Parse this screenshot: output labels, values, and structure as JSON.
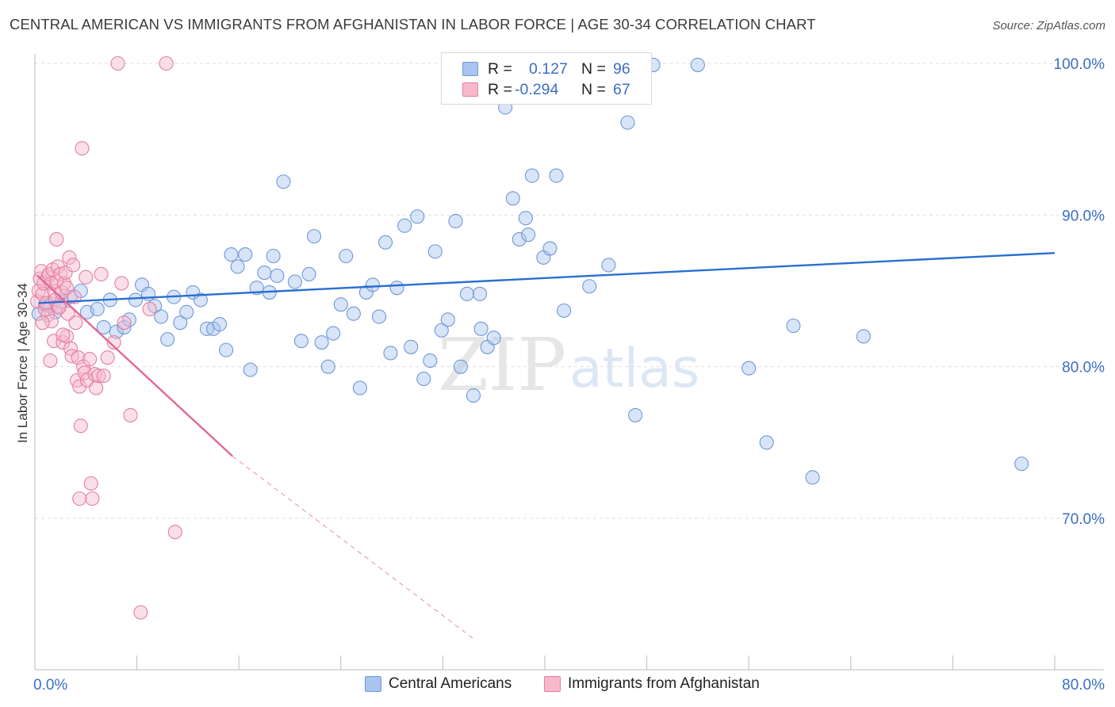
{
  "title": "CENTRAL AMERICAN VS IMMIGRANTS FROM AFGHANISTAN IN LABOR FORCE | AGE 30-34 CORRELATION CHART",
  "source": "Source: ZipAtlas.com",
  "watermark": {
    "zip": "ZIP",
    "atlas": "atlas"
  },
  "legend": {
    "rows": [
      {
        "r_label": "R =",
        "r_value": "0.127",
        "n_label": "N =",
        "n_value": "96",
        "color": "#a9c4ee",
        "edge": "#6f98d8"
      },
      {
        "r_label": "R =",
        "r_value": "-0.294",
        "n_label": "N =",
        "n_value": "67",
        "color": "#f7b8cb",
        "edge": "#e37fa0"
      }
    ]
  },
  "bottom_legend": [
    {
      "label": "Central Americans",
      "color": "#a9c4ee",
      "edge": "#6f98d8"
    },
    {
      "label": "Immigrants from Afghanistan",
      "color": "#f7b8cb",
      "edge": "#e37fa0"
    }
  ],
  "chart_data": {
    "type": "scatter",
    "title": "CENTRAL AMERICAN VS IMMIGRANTS FROM AFGHANISTAN IN LABOR FORCE | AGE 30-34 CORRELATION CHART",
    "xlabel": "",
    "ylabel": "In Labor Force | Age 30-34",
    "xlim": [
      0,
      80
    ],
    "ylim": [
      62,
      101
    ],
    "x_tick_labels": [
      "0.0%",
      "80.0%"
    ],
    "y_ticks": [
      70,
      80,
      90,
      100
    ],
    "y_tick_labels": [
      "70.0%",
      "80.0%",
      "90.0%",
      "100.0%"
    ],
    "grid": true,
    "legend_position": "top-center",
    "series": [
      {
        "name": "Central Americans",
        "color": "#a9c4ee",
        "edge": "#6f98d8",
        "trend": {
          "x": [
            0.3,
            80
          ],
          "y": [
            84.2,
            87.5
          ]
        },
        "points": [
          [
            0.3,
            83.5
          ],
          [
            0.8,
            84.1
          ],
          [
            1.2,
            84.0
          ],
          [
            1.6,
            83.6
          ],
          [
            2.1,
            84.3
          ],
          [
            2.8,
            84.6
          ],
          [
            3.6,
            85.0
          ],
          [
            4.1,
            83.6
          ],
          [
            4.9,
            83.8
          ],
          [
            5.4,
            82.6
          ],
          [
            5.9,
            84.4
          ],
          [
            6.4,
            82.3
          ],
          [
            7.0,
            82.6
          ],
          [
            7.4,
            83.1
          ],
          [
            7.9,
            84.4
          ],
          [
            8.4,
            85.4
          ],
          [
            8.9,
            84.8
          ],
          [
            9.4,
            84.0
          ],
          [
            9.9,
            83.3
          ],
          [
            10.4,
            81.8
          ],
          [
            10.9,
            84.6
          ],
          [
            11.4,
            82.9
          ],
          [
            11.9,
            83.6
          ],
          [
            12.4,
            84.9
          ],
          [
            13.0,
            84.4
          ],
          [
            13.5,
            82.5
          ],
          [
            14.0,
            82.5
          ],
          [
            14.5,
            82.8
          ],
          [
            15.0,
            81.1
          ],
          [
            15.4,
            87.4
          ],
          [
            15.9,
            86.6
          ],
          [
            16.5,
            87.4
          ],
          [
            16.9,
            79.8
          ],
          [
            17.4,
            85.2
          ],
          [
            18.0,
            86.2
          ],
          [
            18.4,
            84.9
          ],
          [
            18.7,
            87.3
          ],
          [
            19.0,
            86.0
          ],
          [
            19.5,
            92.2
          ],
          [
            20.4,
            85.6
          ],
          [
            20.9,
            81.7
          ],
          [
            21.5,
            86.1
          ],
          [
            21.9,
            88.6
          ],
          [
            22.5,
            81.6
          ],
          [
            23.0,
            80.0
          ],
          [
            23.4,
            82.2
          ],
          [
            24.0,
            84.1
          ],
          [
            24.4,
            87.3
          ],
          [
            25.0,
            83.5
          ],
          [
            25.5,
            78.6
          ],
          [
            26.0,
            84.9
          ],
          [
            26.5,
            85.4
          ],
          [
            27.0,
            83.3
          ],
          [
            27.5,
            88.2
          ],
          [
            27.9,
            80.9
          ],
          [
            28.4,
            85.2
          ],
          [
            29.0,
            89.3
          ],
          [
            29.5,
            81.3
          ],
          [
            30.0,
            89.9
          ],
          [
            30.5,
            79.2
          ],
          [
            31.0,
            80.4
          ],
          [
            31.4,
            87.6
          ],
          [
            31.9,
            82.4
          ],
          [
            32.4,
            83.1
          ],
          [
            33.0,
            89.6
          ],
          [
            33.4,
            80.0
          ],
          [
            33.9,
            84.8
          ],
          [
            34.4,
            78.1
          ],
          [
            34.9,
            84.8
          ],
          [
            35.0,
            82.5
          ],
          [
            35.5,
            81.3
          ],
          [
            36.0,
            81.9
          ],
          [
            36.9,
            97.1
          ],
          [
            37.5,
            91.1
          ],
          [
            38.0,
            88.4
          ],
          [
            38.5,
            89.8
          ],
          [
            38.7,
            88.7
          ],
          [
            39.0,
            92.6
          ],
          [
            39.9,
            87.2
          ],
          [
            40.4,
            87.8
          ],
          [
            40.9,
            92.6
          ],
          [
            41.5,
            83.7
          ],
          [
            42.4,
            99.9
          ],
          [
            42.8,
            99.9
          ],
          [
            43.5,
            85.3
          ],
          [
            45.0,
            86.7
          ],
          [
            46.5,
            96.1
          ],
          [
            47.1,
            76.8
          ],
          [
            48.5,
            99.9
          ],
          [
            52.0,
            99.9
          ],
          [
            56.0,
            79.9
          ],
          [
            57.4,
            75.0
          ],
          [
            59.5,
            82.7
          ],
          [
            61.0,
            72.7
          ],
          [
            65.0,
            82.0
          ],
          [
            77.4,
            73.6
          ]
        ]
      },
      {
        "name": "Immigrants from Afghanistan",
        "color": "#f7b8cb",
        "edge": "#e37fa0",
        "trend": {
          "x": [
            0.2,
            15.5
          ],
          "y": [
            86.0,
            74.1
          ]
        },
        "trend_dashed": {
          "x": [
            15.5,
            34.5
          ],
          "y": [
            74.1,
            62.0
          ]
        },
        "points": [
          [
            0.2,
            84.3
          ],
          [
            0.3,
            85.0
          ],
          [
            0.4,
            85.8
          ],
          [
            0.5,
            86.3
          ],
          [
            0.6,
            84.8
          ],
          [
            0.7,
            85.5
          ],
          [
            0.8,
            83.8
          ],
          [
            0.9,
            84.2
          ],
          [
            1.0,
            85.9
          ],
          [
            1.0,
            83.4
          ],
          [
            1.1,
            86.1
          ],
          [
            1.2,
            80.4
          ],
          [
            1.3,
            83.0
          ],
          [
            1.3,
            85.5
          ],
          [
            1.4,
            86.4
          ],
          [
            1.5,
            81.7
          ],
          [
            1.5,
            85.0
          ],
          [
            1.6,
            84.4
          ],
          [
            1.7,
            85.6
          ],
          [
            1.7,
            88.4
          ],
          [
            1.8,
            86.6
          ],
          [
            1.9,
            84.0
          ],
          [
            2.0,
            86.1
          ],
          [
            2.1,
            84.9
          ],
          [
            2.2,
            81.6
          ],
          [
            2.3,
            85.5
          ],
          [
            2.4,
            86.2
          ],
          [
            2.5,
            82.0
          ],
          [
            2.5,
            85.2
          ],
          [
            2.6,
            83.5
          ],
          [
            2.7,
            87.2
          ],
          [
            2.8,
            81.2
          ],
          [
            2.9,
            80.7
          ],
          [
            3.0,
            86.7
          ],
          [
            3.1,
            84.6
          ],
          [
            3.2,
            82.9
          ],
          [
            3.3,
            79.1
          ],
          [
            3.4,
            80.6
          ],
          [
            3.5,
            78.7
          ],
          [
            3.6,
            76.1
          ],
          [
            3.7,
            94.4
          ],
          [
            3.8,
            80.0
          ],
          [
            3.9,
            79.6
          ],
          [
            4.0,
            85.9
          ],
          [
            4.1,
            79.1
          ],
          [
            4.3,
            80.5
          ],
          [
            4.4,
            72.3
          ],
          [
            4.5,
            71.3
          ],
          [
            4.7,
            79.5
          ],
          [
            4.8,
            78.6
          ],
          [
            5.0,
            79.4
          ],
          [
            5.2,
            86.1
          ],
          [
            5.4,
            79.4
          ],
          [
            5.7,
            80.6
          ],
          [
            6.2,
            81.6
          ],
          [
            6.5,
            100.0
          ],
          [
            6.8,
            85.5
          ],
          [
            7.0,
            82.9
          ],
          [
            7.5,
            76.8
          ],
          [
            8.3,
            63.8
          ],
          [
            9.0,
            83.8
          ],
          [
            10.3,
            100.0
          ],
          [
            11.0,
            69.1
          ],
          [
            3.5,
            71.3
          ],
          [
            2.2,
            82.1
          ],
          [
            1.9,
            83.9
          ],
          [
            0.6,
            82.9
          ]
        ]
      }
    ]
  }
}
